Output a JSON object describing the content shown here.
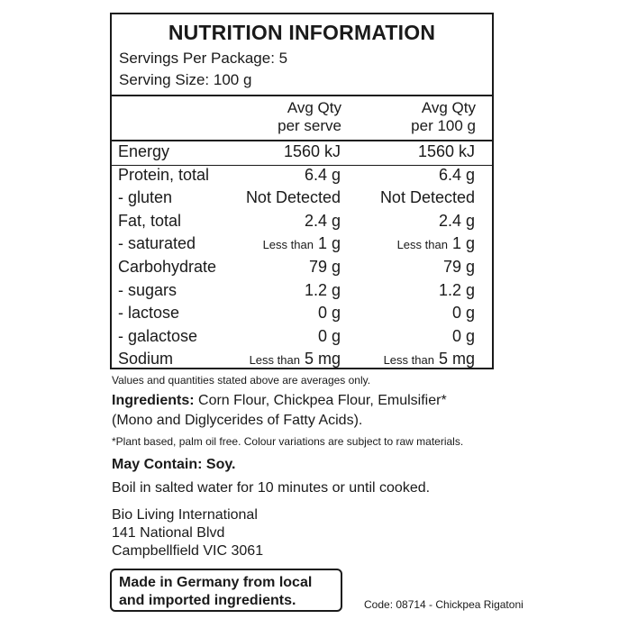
{
  "panel": {
    "title": "NUTRITION INFORMATION",
    "servings_per_package": "Servings Per Package: 5",
    "serving_size": "Serving Size: 100 g",
    "col1_line1": "Avg Qty",
    "col1_line2": "per serve",
    "col2_line1": "Avg Qty",
    "col2_line2": "per 100 g",
    "rows": [
      {
        "label": "Energy",
        "v1_pre": "",
        "v1": "1560 kJ",
        "v2_pre": "",
        "v2": "1560 kJ"
      },
      {
        "label": "Protein, total",
        "v1_pre": "",
        "v1": "6.4 g",
        "v2_pre": "",
        "v2": "6.4 g"
      },
      {
        "label": "- gluten",
        "v1_pre": "",
        "v1": "Not Detected",
        "v2_pre": "",
        "v2": "Not Detected"
      },
      {
        "label": "Fat, total",
        "v1_pre": "",
        "v1": "2.4 g",
        "v2_pre": "",
        "v2": "2.4 g"
      },
      {
        "label": "- saturated",
        "v1_pre": "Less than",
        "v1": "1 g",
        "v2_pre": "Less than",
        "v2": "1 g"
      },
      {
        "label": "Carbohydrate",
        "v1_pre": "",
        "v1": "79 g",
        "v2_pre": "",
        "v2": "79 g"
      },
      {
        "label": "- sugars",
        "v1_pre": "",
        "v1": "1.2 g",
        "v2_pre": "",
        "v2": "1.2 g"
      },
      {
        "label": "- lactose",
        "v1_pre": "",
        "v1": "0 g",
        "v2_pre": "",
        "v2": "0 g"
      },
      {
        "label": "- galactose",
        "v1_pre": "",
        "v1": "0 g",
        "v2_pre": "",
        "v2": "0 g"
      },
      {
        "label": "Sodium",
        "v1_pre": "Less than",
        "v1": "5 mg",
        "v2_pre": "Less than",
        "v2": "5 mg"
      }
    ]
  },
  "averages_note": "Values and quantities stated above are averages only.",
  "ingredients": {
    "heading": "Ingredients:",
    "line1": " Corn Flour, Chickpea Flour, Emulsifier*",
    "line2": "(Mono and Diglycerides of Fatty Acids)."
  },
  "footnote": "*Plant based, palm oil free. Colour variations are subject to raw materials.",
  "may_contain": "May Contain: Soy.",
  "cooking": "Boil in salted water for 10 minutes or until cooked.",
  "company": {
    "name": "Bio Living International",
    "street": "141 National Blvd",
    "city": "Campbellfield VIC 3061"
  },
  "origin": {
    "line1": "Made in Germany from local",
    "line2": "and imported ingredients."
  },
  "code": "Code: 08714 - Chickpea Rigatoni"
}
